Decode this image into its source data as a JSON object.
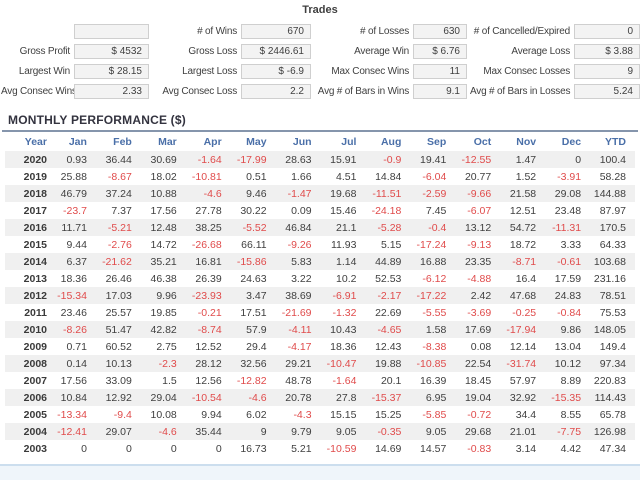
{
  "trades": {
    "title": "Trades",
    "rows": [
      [
        {
          "label": "",
          "value": ""
        },
        {
          "label": "# of Wins",
          "value": "670"
        },
        {
          "label": "# of Losses",
          "value": "630"
        },
        {
          "label": "# of Cancelled/Expired",
          "value": "0"
        }
      ],
      [
        {
          "label": "Gross Profit",
          "value": "$ 4532"
        },
        {
          "label": "Gross Loss",
          "value": "$ 2446.61"
        },
        {
          "label": "Average Win",
          "value": "$ 6.76"
        },
        {
          "label": "Average Loss",
          "value": "$ 3.88"
        }
      ],
      [
        {
          "label": "Largest Win",
          "value": "$ 28.15"
        },
        {
          "label": "Largest Loss",
          "value": "$ -6.9"
        },
        {
          "label": "Max Consec Wins",
          "value": "11"
        },
        {
          "label": "Max Consec Losses",
          "value": "9"
        }
      ],
      [
        {
          "label": "Avg Consec Wins",
          "value": "2.33"
        },
        {
          "label": "Avg Consec Loss",
          "value": "2.2"
        },
        {
          "label": "Avg # of Bars in Wins",
          "value": "9.1"
        },
        {
          "label": "Avg # of Bars in Losses",
          "value": "5.24"
        }
      ]
    ]
  },
  "monthly": {
    "title": "MONTHLY PERFORMANCE ($)",
    "columns": [
      "Year",
      "Jan",
      "Feb",
      "Mar",
      "Apr",
      "May",
      "Jun",
      "Jul",
      "Aug",
      "Sep",
      "Oct",
      "Nov",
      "Dec",
      "YTD"
    ],
    "rows": [
      [
        "2020",
        "0.93",
        "36.44",
        "30.69",
        "-1.64",
        "-17.99",
        "28.63",
        "15.91",
        "-0.9",
        "19.41",
        "-12.55",
        "1.47",
        "0",
        "100.4"
      ],
      [
        "2019",
        "25.88",
        "-8.67",
        "18.02",
        "-10.81",
        "0.51",
        "1.66",
        "4.51",
        "14.84",
        "-6.04",
        "20.77",
        "1.52",
        "-3.91",
        "58.28"
      ],
      [
        "2018",
        "46.79",
        "37.24",
        "10.88",
        "-4.6",
        "9.46",
        "-1.47",
        "19.68",
        "-11.51",
        "-2.59",
        "-9.66",
        "21.58",
        "29.08",
        "144.88"
      ],
      [
        "2017",
        "-23.7",
        "7.37",
        "17.56",
        "27.78",
        "30.22",
        "0.09",
        "15.46",
        "-24.18",
        "7.45",
        "-6.07",
        "12.51",
        "23.48",
        "87.97"
      ],
      [
        "2016",
        "11.71",
        "-5.21",
        "12.48",
        "38.25",
        "-5.52",
        "46.84",
        "21.1",
        "-5.28",
        "-0.4",
        "13.12",
        "54.72",
        "-11.31",
        "170.5"
      ],
      [
        "2015",
        "9.44",
        "-2.76",
        "14.72",
        "-26.68",
        "66.11",
        "-9.26",
        "11.93",
        "5.15",
        "-17.24",
        "-9.13",
        "18.72",
        "3.33",
        "64.33"
      ],
      [
        "2014",
        "6.37",
        "-21.62",
        "35.21",
        "16.81",
        "-15.86",
        "5.83",
        "1.14",
        "44.89",
        "16.88",
        "23.35",
        "-8.71",
        "-0.61",
        "103.68"
      ],
      [
        "2013",
        "18.36",
        "26.46",
        "46.38",
        "26.39",
        "24.63",
        "3.22",
        "10.2",
        "52.53",
        "-6.12",
        "-4.88",
        "16.4",
        "17.59",
        "231.16"
      ],
      [
        "2012",
        "-15.34",
        "17.03",
        "9.96",
        "-23.93",
        "3.47",
        "38.69",
        "-6.91",
        "-2.17",
        "-17.22",
        "2.42",
        "47.68",
        "24.83",
        "78.51"
      ],
      [
        "2011",
        "23.46",
        "25.57",
        "19.85",
        "-0.21",
        "17.51",
        "-21.69",
        "-1.32",
        "22.69",
        "-5.55",
        "-3.69",
        "-0.25",
        "-0.84",
        "75.53"
      ],
      [
        "2010",
        "-8.26",
        "51.47",
        "42.82",
        "-8.74",
        "57.9",
        "-4.11",
        "10.43",
        "-4.65",
        "1.58",
        "17.69",
        "-17.94",
        "9.86",
        "148.05"
      ],
      [
        "2009",
        "0.71",
        "60.52",
        "2.75",
        "12.52",
        "29.4",
        "-4.17",
        "18.36",
        "12.43",
        "-8.38",
        "0.08",
        "12.14",
        "13.04",
        "149.4"
      ],
      [
        "2008",
        "0.14",
        "10.13",
        "-2.3",
        "28.12",
        "32.56",
        "29.21",
        "-10.47",
        "19.88",
        "-10.85",
        "22.54",
        "-31.74",
        "10.12",
        "97.34"
      ],
      [
        "2007",
        "17.56",
        "33.09",
        "1.5",
        "12.56",
        "-12.82",
        "48.78",
        "-1.64",
        "20.1",
        "16.39",
        "18.45",
        "57.97",
        "8.89",
        "220.83"
      ],
      [
        "2006",
        "10.84",
        "12.92",
        "29.04",
        "-10.54",
        "-4.6",
        "20.78",
        "27.8",
        "-15.37",
        "6.95",
        "19.04",
        "32.92",
        "-15.35",
        "114.43"
      ],
      [
        "2005",
        "-13.34",
        "-9.4",
        "10.08",
        "9.94",
        "6.02",
        "-4.3",
        "15.15",
        "15.25",
        "-5.85",
        "-0.72",
        "34.4",
        "8.55",
        "65.78"
      ],
      [
        "2004",
        "-12.41",
        "29.07",
        "-4.6",
        "35.44",
        "9",
        "9.79",
        "9.05",
        "-0.35",
        "9.05",
        "29.68",
        "21.01",
        "-7.75",
        "126.98"
      ],
      [
        "2003",
        "0",
        "0",
        "0",
        "0",
        "16.73",
        "5.21",
        "-10.59",
        "14.69",
        "14.57",
        "-0.83",
        "3.14",
        "4.42",
        "47.34"
      ]
    ]
  },
  "colors": {
    "header_blue": "#4a6fa8",
    "negative_red": "#e04b4b",
    "text_dark": "#3f3f3f",
    "row_stripe": "#f0f0f0",
    "value_box_bg": "#f3f3f3",
    "value_box_border": "#cfcfcf",
    "title_rule": "#8595ac",
    "bottom_band_fill": "#eff5fa",
    "bottom_band_border": "#ccdeee"
  }
}
